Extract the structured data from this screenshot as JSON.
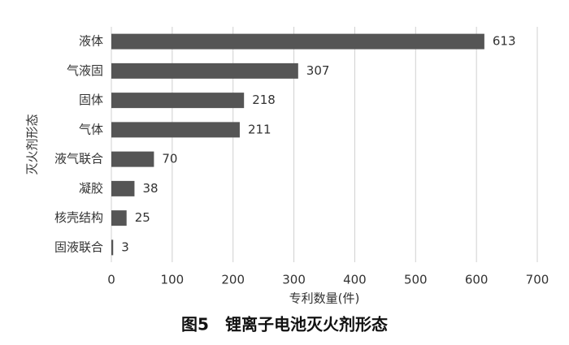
{
  "chart_data": {
    "type": "bar",
    "orientation": "horizontal",
    "caption": "图5　锂离子电池灭火剂形态",
    "x_label": "专利数量(件)",
    "y_label": "灭火剂形态",
    "categories": [
      "液体",
      "气液固",
      "固体",
      "气体",
      "液气联合",
      "凝胶",
      "核壳结构",
      "固液联合"
    ],
    "values": [
      613,
      307,
      218,
      211,
      70,
      38,
      25,
      3
    ],
    "color": "#555555",
    "xlim": [
      0,
      700
    ],
    "xticks": [
      0,
      100,
      200,
      300,
      400,
      500,
      600,
      700
    ],
    "grid": true
  }
}
